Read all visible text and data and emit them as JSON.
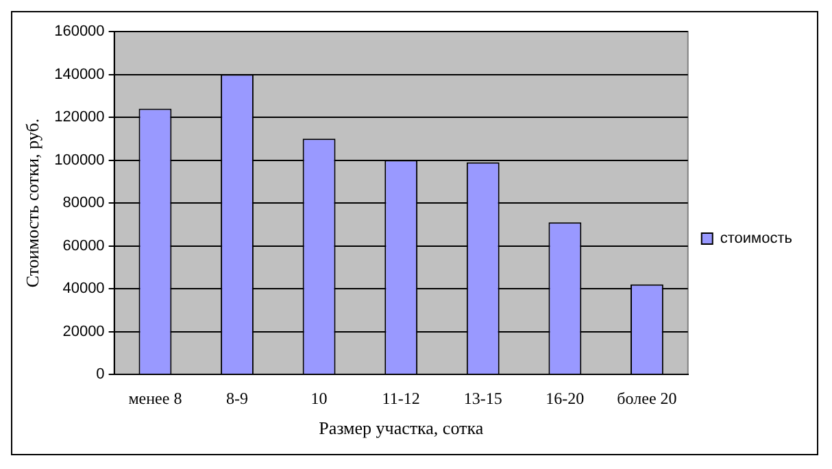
{
  "chart_data": {
    "type": "bar",
    "xlabel": "Размер участка, сотка",
    "ylabel": "Стоимость сотки, руб.",
    "categories": [
      "менее 8",
      "8-9",
      "10",
      "11-12",
      "13-15",
      "16-20",
      "более 20"
    ],
    "series": [
      {
        "name": "стоимость",
        "color": "#9999ff",
        "values": [
          124000,
          140000,
          110000,
          100000,
          99000,
          71000,
          42000
        ]
      }
    ],
    "ylim": [
      0,
      160000
    ],
    "yticks": [
      0,
      20000,
      40000,
      60000,
      80000,
      100000,
      120000,
      140000,
      160000
    ],
    "grid": "y",
    "legend": "right"
  }
}
